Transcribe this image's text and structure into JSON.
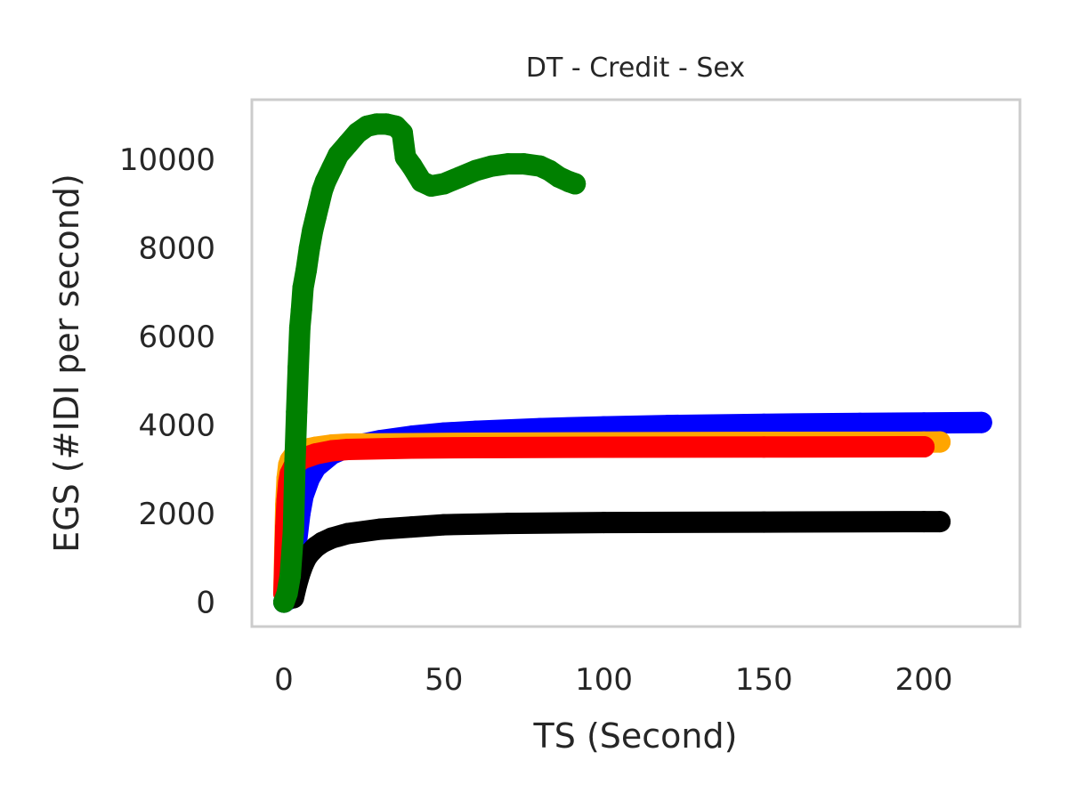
{
  "chart_data": {
    "type": "scatter",
    "title": "DT - Credit - Sex",
    "xlabel": "TS (Second)",
    "ylabel": "EGS (#IDI  per second)",
    "xlim": [
      -10,
      230
    ],
    "ylim": [
      -550,
      11350
    ],
    "xticks": [
      0,
      50,
      100,
      150,
      200
    ],
    "yticks": [
      0,
      2000,
      4000,
      6000,
      8000,
      10000
    ],
    "xtick_labels": [
      "0",
      "50",
      "100",
      "150",
      "200"
    ],
    "ytick_labels": [
      "0",
      "2000",
      "4000",
      "6000",
      "8000",
      "10000"
    ],
    "grid": false,
    "colors": {
      "frame": "#cccccc",
      "text": "#262626"
    },
    "series": [
      {
        "color": "#0000ff",
        "x": [
          0,
          1,
          2,
          3,
          4,
          5,
          6,
          8,
          10,
          15,
          20,
          30,
          40,
          50,
          60,
          80,
          100,
          120,
          150,
          180,
          200,
          218
        ],
        "y": [
          0,
          50,
          300,
          800,
          1400,
          2000,
          2400,
          2800,
          3050,
          3350,
          3500,
          3650,
          3750,
          3820,
          3860,
          3920,
          3960,
          3990,
          4020,
          4040,
          4050,
          4060
        ]
      },
      {
        "color": "#ffa500",
        "x": [
          0,
          0.3,
          0.6,
          1,
          1.5,
          2,
          3,
          4,
          5,
          6,
          8,
          10,
          15,
          20,
          40,
          60,
          100,
          150,
          200,
          205
        ],
        "y": [
          200,
          1200,
          2200,
          2800,
          3100,
          3200,
          3300,
          3350,
          3400,
          3430,
          3470,
          3500,
          3550,
          3570,
          3580,
          3590,
          3600,
          3610,
          3615,
          3620
        ]
      },
      {
        "color": "#ff0000",
        "x": [
          0,
          0.3,
          0.6,
          1,
          1.5,
          2,
          3,
          4,
          5,
          6,
          8,
          10,
          15,
          20,
          40,
          60,
          100,
          150,
          200
        ],
        "y": [
          200,
          900,
          1700,
          2300,
          2700,
          2900,
          3050,
          3150,
          3200,
          3250,
          3300,
          3350,
          3420,
          3450,
          3480,
          3490,
          3500,
          3505,
          3510
        ]
      },
      {
        "color": "#000000",
        "x": [
          3,
          4,
          5,
          6,
          7,
          8,
          10,
          12,
          15,
          20,
          30,
          40,
          50,
          70,
          100,
          150,
          200,
          205
        ],
        "y": [
          100,
          400,
          650,
          850,
          1000,
          1100,
          1250,
          1350,
          1450,
          1550,
          1650,
          1700,
          1750,
          1780,
          1800,
          1810,
          1820,
          1820
        ]
      },
      {
        "color": "#008000",
        "x": [
          0,
          1,
          2,
          3,
          3.5,
          4,
          4.5,
          5,
          5.5,
          6,
          7,
          8,
          9,
          10,
          11,
          12,
          13,
          15,
          17,
          20,
          23,
          26,
          29,
          32,
          35,
          37,
          38,
          40,
          43,
          46,
          50,
          55,
          60,
          65,
          70,
          75,
          80,
          83,
          86,
          89,
          91
        ],
        "y": [
          0,
          200,
          600,
          1600,
          3200,
          4300,
          5300,
          6200,
          6600,
          7100,
          7500,
          8000,
          8400,
          8700,
          9000,
          9300,
          9500,
          9800,
          10100,
          10350,
          10600,
          10750,
          10800,
          10800,
          10750,
          10600,
          10050,
          9850,
          9500,
          9400,
          9450,
          9600,
          9750,
          9850,
          9900,
          9900,
          9850,
          9750,
          9600,
          9500,
          9450
        ]
      }
    ]
  }
}
